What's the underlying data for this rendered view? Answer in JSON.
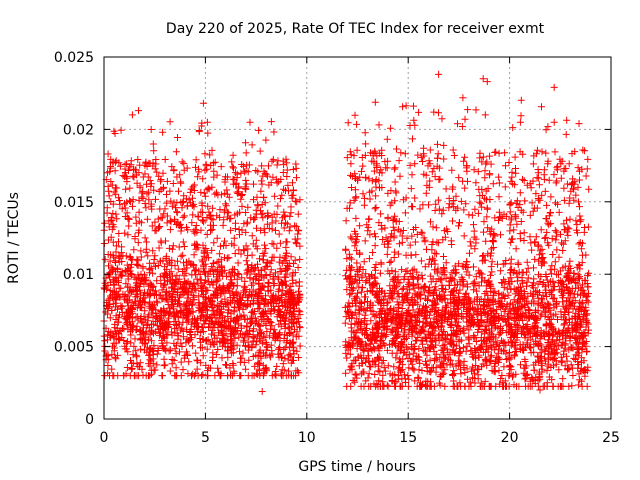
{
  "chart_data": {
    "type": "scatter",
    "title": "Day 220 of 2025, Rate Of TEC Index for receiver exmt",
    "xlabel": "GPS time / hours",
    "ylabel": "ROTI / TECUs",
    "xlim": [
      0,
      25
    ],
    "ylim": [
      0,
      0.025
    ],
    "xticks": [
      0,
      5,
      10,
      15,
      20,
      25
    ],
    "yticks": [
      0,
      0.005,
      0.01,
      0.015,
      0.02,
      0.025
    ],
    "xtick_labels": [
      "0",
      "5",
      "10",
      "15",
      "20",
      "25"
    ],
    "ytick_labels": [
      "0",
      "0.005",
      "0.01",
      "0.015",
      "0.02",
      "0.025"
    ],
    "grid": true,
    "marker": "+",
    "series_color": "#ff0000",
    "observation_segments": [
      {
        "x_start": 0.0,
        "x_end": 9.7,
        "typical_range": [
          0.004,
          0.013
        ],
        "max_value": 0.022
      },
      {
        "x_start": 11.9,
        "x_end": 23.9,
        "typical_range": [
          0.003,
          0.012
        ],
        "max_value": 0.024
      }
    ],
    "notable_points": [
      {
        "x": 0.2,
        "y": 0.0183
      },
      {
        "x": 1.4,
        "y": 0.021
      },
      {
        "x": 1.7,
        "y": 0.0213
      },
      {
        "x": 4.9,
        "y": 0.0218
      },
      {
        "x": 5.1,
        "y": 0.0205
      },
      {
        "x": 7.2,
        "y": 0.0205
      },
      {
        "x": 7.7,
        "y": 0.0185
      },
      {
        "x": 7.8,
        "y": 0.0019
      },
      {
        "x": 9.5,
        "y": 0.015
      },
      {
        "x": 12.9,
        "y": 0.019
      },
      {
        "x": 16.5,
        "y": 0.0238
      },
      {
        "x": 17.8,
        "y": 0.0207
      },
      {
        "x": 18.7,
        "y": 0.0235
      },
      {
        "x": 18.9,
        "y": 0.0233
      },
      {
        "x": 18.8,
        "y": 0.021
      },
      {
        "x": 22.2,
        "y": 0.0229
      },
      {
        "x": 22.2,
        "y": 0.0205
      },
      {
        "x": 21.9,
        "y": 0.0178
      },
      {
        "x": 15.6,
        "y": 0.0025
      },
      {
        "x": 21.5,
        "y": 0.002
      }
    ]
  }
}
